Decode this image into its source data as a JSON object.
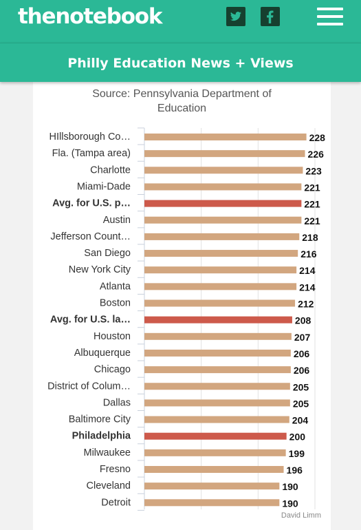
{
  "header": {
    "logo": "thenotebook",
    "twitter_icon": "twitter-icon",
    "facebook_icon": "facebook-icon",
    "menu_icon": "hamburger-menu-icon"
  },
  "subheader": {
    "title": "Philly Education News + Views"
  },
  "figure": {
    "source": "Source: Pennsylvania Department of Education",
    "credit": "David Limm"
  },
  "colors": {
    "brand": "#2bb896",
    "bar": "#d2a67f",
    "bar_highlight": "#cd5a4b"
  },
  "chart_data": {
    "type": "bar",
    "orientation": "horizontal",
    "categories": [
      "HIllsborough Co…",
      "Fla. (Tampa area)",
      "Charlotte",
      "Miami-Dade",
      "Avg. for U.S. p…",
      "Austin",
      "Jefferson Count…",
      "San Diego",
      "New York City",
      "Atlanta",
      "Boston",
      "Avg. for U.S. la…",
      "Houston",
      "Albuquerque",
      "Chicago",
      "District of Colum…",
      "Dallas",
      "Baltimore City",
      "Philadelphia",
      "Milwaukee",
      "Fresno",
      "Cleveland",
      "Detroit"
    ],
    "values": [
      228,
      226,
      223,
      221,
      221,
      221,
      218,
      216,
      214,
      214,
      212,
      208,
      207,
      206,
      206,
      205,
      205,
      204,
      200,
      199,
      196,
      190,
      190
    ],
    "highlighted": [
      false,
      false,
      false,
      false,
      true,
      false,
      false,
      false,
      false,
      false,
      false,
      true,
      false,
      false,
      false,
      false,
      false,
      false,
      true,
      false,
      false,
      false,
      false
    ],
    "xlim": [
      0,
      240
    ],
    "grid": true,
    "title": "",
    "xlabel": "",
    "ylabel": ""
  }
}
